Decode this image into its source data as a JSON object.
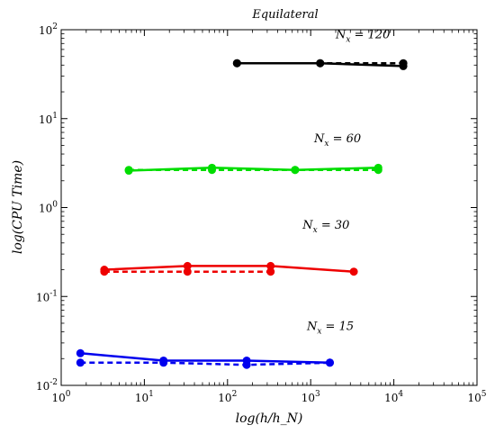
{
  "chart_data": {
    "type": "line",
    "title": "Equilateral",
    "xlabel": "log(h/h_N)",
    "ylabel": "log(CPU Time)",
    "xscale": "log",
    "yscale": "log",
    "xlim": [
      1,
      100000
    ],
    "ylim": [
      0.01,
      100
    ],
    "x_ticks": [
      {
        "value": 1,
        "base": "10",
        "exp": "0"
      },
      {
        "value": 10,
        "base": "10",
        "exp": "1"
      },
      {
        "value": 100,
        "base": "10",
        "exp": "2"
      },
      {
        "value": 1000,
        "base": "10",
        "exp": "3"
      },
      {
        "value": 10000,
        "base": "10",
        "exp": "4"
      },
      {
        "value": 100000,
        "base": "10",
        "exp": "5"
      }
    ],
    "y_ticks": [
      {
        "value": 0.01,
        "base": "10",
        "exp": "-2"
      },
      {
        "value": 0.1,
        "base": "10",
        "exp": "-1"
      },
      {
        "value": 1,
        "base": "10",
        "exp": "0"
      },
      {
        "value": 10,
        "base": "10",
        "exp": "1"
      },
      {
        "value": 100,
        "base": "10",
        "exp": "2"
      }
    ],
    "grid": false,
    "series": [
      {
        "group": "N_x = 120",
        "style": "solid",
        "color": "#000000",
        "x": [
          130,
          1300,
          13000
        ],
        "y": [
          42,
          42,
          39
        ]
      },
      {
        "group": "N_x = 120",
        "style": "dashed",
        "color": "#000000",
        "x": [
          130,
          1300,
          13000
        ],
        "y": [
          42,
          42,
          42
        ]
      },
      {
        "group": "N_x = 60",
        "style": "solid",
        "color": "#00dd00",
        "x": [
          6.5,
          65,
          650,
          6500
        ],
        "y": [
          2.6,
          2.8,
          2.65,
          2.8
        ]
      },
      {
        "group": "N_x = 60",
        "style": "dashed",
        "color": "#00dd00",
        "x": [
          6.5,
          65,
          650,
          6500
        ],
        "y": [
          2.65,
          2.65,
          2.65,
          2.65
        ]
      },
      {
        "group": "N_x = 30",
        "style": "solid",
        "color": "#ee0000",
        "x": [
          3.3,
          33,
          330,
          3300
        ],
        "y": [
          0.2,
          0.22,
          0.22,
          0.19
        ]
      },
      {
        "group": "N_x = 30",
        "style": "dashed",
        "color": "#ee0000",
        "x": [
          3.3,
          33,
          330
        ],
        "y": [
          0.19,
          0.19,
          0.19
        ]
      },
      {
        "group": "N_x = 15",
        "style": "solid",
        "color": "#0000ee",
        "x": [
          1.7,
          17,
          170,
          1700
        ],
        "y": [
          0.023,
          0.019,
          0.019,
          0.018
        ]
      },
      {
        "group": "N_x = 15",
        "style": "dashed",
        "color": "#0000ee",
        "x": [
          1.7,
          17,
          170,
          1700
        ],
        "y": [
          0.018,
          0.018,
          0.017,
          0.018
        ]
      }
    ],
    "annotations": [
      {
        "id": "nx120",
        "base": "N",
        "sub": "x",
        "rest": " = 120",
        "x": 2000,
        "y": 80
      },
      {
        "id": "nx60",
        "base": "N",
        "sub": "x",
        "rest": " = 60",
        "x": 1100,
        "y": 5.4
      },
      {
        "id": "nx30",
        "base": "N",
        "sub": "x",
        "rest": " = 30",
        "x": 800,
        "y": 0.58
      },
      {
        "id": "nx15",
        "base": "N",
        "sub": "x",
        "rest": " = 15",
        "x": 900,
        "y": 0.042
      }
    ]
  }
}
